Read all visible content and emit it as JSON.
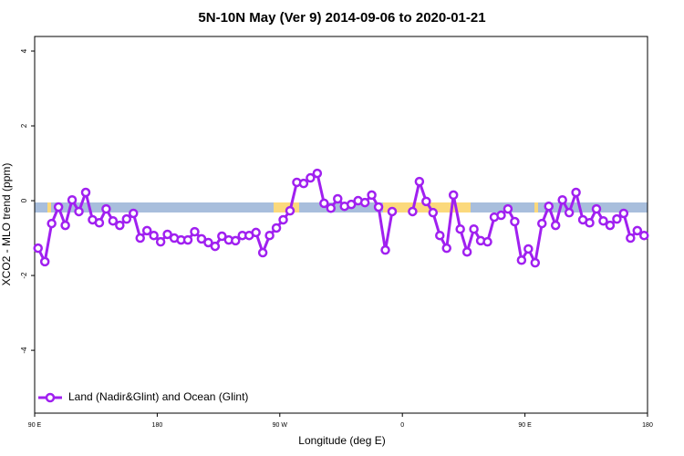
{
  "chart_data": {
    "type": "line",
    "title": "5N-10N May (Ver 9)   2014-09-06 to 2020-01-21",
    "x_label": "Longitude (deg E)",
    "y_label": "XCO2 - MLO trend (ppm)",
    "xlim": [
      90,
      540
    ],
    "xticks": [
      {
        "value": 90,
        "label": "90 E"
      },
      {
        "value": 180,
        "label": "180"
      },
      {
        "value": 270,
        "label": "90 W"
      },
      {
        "value": 360,
        "label": "0"
      },
      {
        "value": 450,
        "label": "90 E"
      },
      {
        "value": 540,
        "label": "180"
      }
    ],
    "ylim": [
      -5.68,
      4.39
    ],
    "yticks": [
      -4,
      -2,
      0,
      2,
      4
    ],
    "legend": "bottom-left",
    "x": [
      92.5,
      97.5,
      102.5,
      107.5,
      112.5,
      117.5,
      122.5,
      127.5,
      132.5,
      137.5,
      142.5,
      147.5,
      152.5,
      157.5,
      162.5,
      167.5,
      172.5,
      177.5,
      182.5,
      187.5,
      192.5,
      197.5,
      202.5,
      207.5,
      212.5,
      217.5,
      222.5,
      227.5,
      232.5,
      237.5,
      242.5,
      247.5,
      252.5,
      257.5,
      262.5,
      267.5,
      272.5,
      277.5,
      282.5,
      287.5,
      292.5,
      297.5,
      302.5,
      307.5,
      312.5,
      317.5,
      322.5,
      327.5,
      332.5,
      337.5,
      342.5,
      347.5,
      352.5,
      357.5,
      362.5,
      367.5,
      372.5,
      377.5,
      382.5,
      387.5,
      392.5,
      397.5,
      402.5,
      407.5,
      412.5,
      417.5,
      422.5,
      427.5,
      432.5,
      437.5,
      442.5,
      447.5,
      452.5,
      457.5,
      462.5,
      467.5,
      472.5,
      477.5,
      482.5,
      487.5,
      492.5,
      497.5,
      502.5,
      507.5,
      512.5,
      517.5,
      522.5,
      527.5,
      532.5,
      537.5
    ],
    "series": [
      {
        "name": "Land (Nadir&Glint) and Ocean (Glint)",
        "color": "#a020f0",
        "values": [
          -1.27,
          -1.63,
          -0.61,
          -0.17,
          -0.66,
          0.02,
          -0.29,
          0.22,
          -0.51,
          -0.59,
          -0.22,
          -0.54,
          -0.66,
          -0.49,
          -0.34,
          -1.0,
          -0.8,
          -0.93,
          -1.1,
          -0.9,
          -1.0,
          -1.05,
          -1.05,
          -0.83,
          -1.02,
          -1.12,
          -1.22,
          -0.95,
          -1.05,
          -1.07,
          -0.93,
          -0.93,
          -0.85,
          -1.39,
          -0.93,
          -0.73,
          -0.51,
          -0.27,
          0.49,
          0.46,
          0.61,
          0.73,
          -0.07,
          -0.2,
          0.05,
          -0.15,
          -0.1,
          0,
          -0.05,
          0.15,
          -0.17,
          -1.32,
          -0.29,
          null,
          null,
          -0.29,
          0.51,
          -0.02,
          -0.32,
          -0.93,
          -1.27,
          0.15,
          -0.76,
          -1.37,
          -0.76,
          -1.07,
          -1.1,
          -0.44,
          -0.39,
          -0.22,
          -0.56,
          -1.59,
          -1.29,
          -1.66,
          -0.61,
          -0.15,
          -0.66,
          0.02,
          -0.32,
          0.22,
          -0.51,
          -0.59,
          -0.22,
          -0.54,
          -0.66,
          -0.49,
          -0.34,
          -1.0,
          -0.8,
          -0.93
        ]
      }
    ]
  }
}
